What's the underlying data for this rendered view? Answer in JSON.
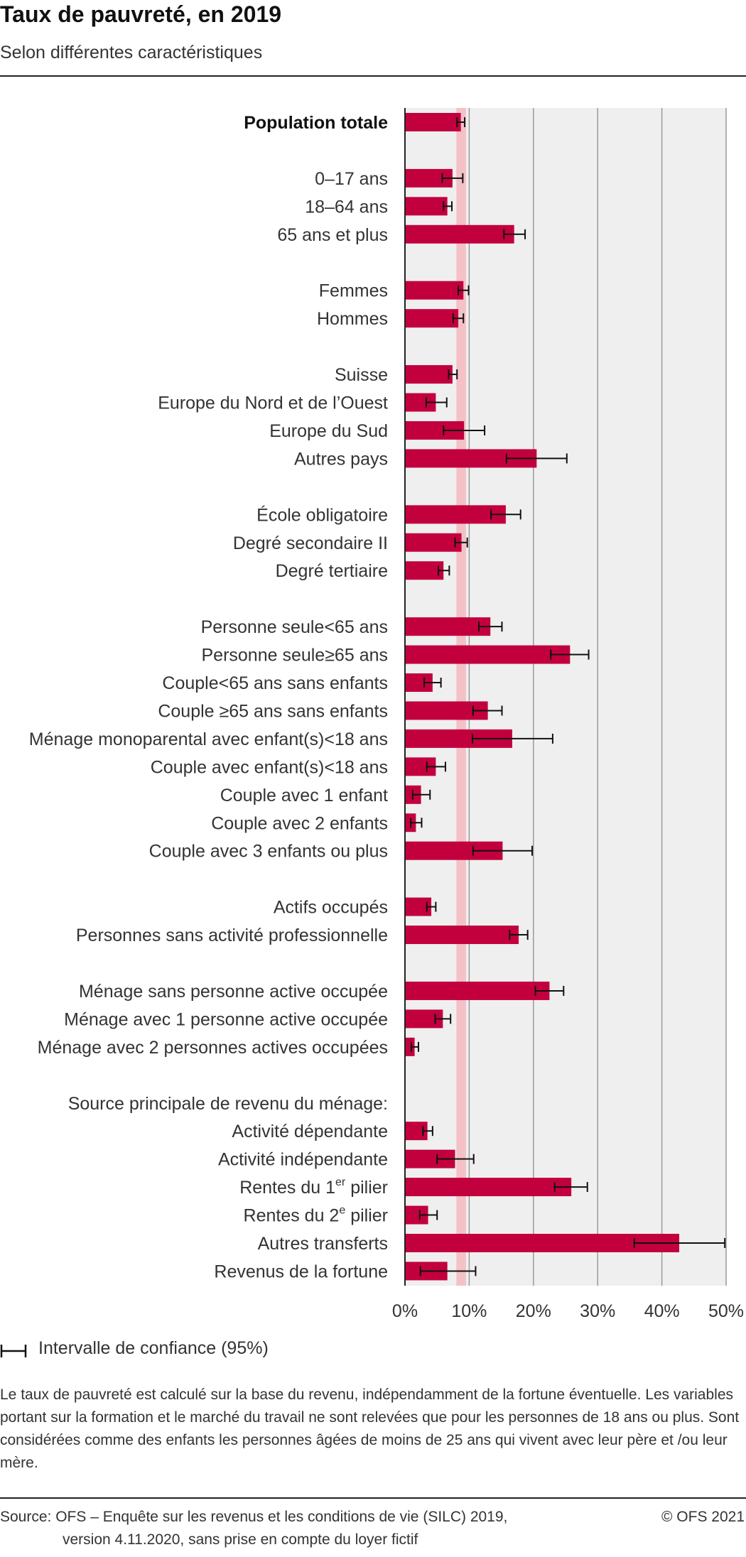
{
  "chart_data": {
    "type": "bar",
    "orientation": "horizontal",
    "title": "Taux de pauvreté, en 2019",
    "subtitle": "Selon différentes caractéristiques",
    "xlim": [
      0,
      50
    ],
    "ticks": [
      0,
      10,
      20,
      30,
      40,
      50
    ],
    "tick_labels": [
      "0%",
      "10%",
      "20%",
      "30%",
      "40%",
      "50%"
    ],
    "reference_band": [
      8,
      9.5
    ],
    "colors": {
      "bar": "#c2003e",
      "band": "#f4c1c7",
      "plot_bg": "#efefef",
      "grid": "#9a9a9a",
      "error": "#111111"
    },
    "groups": [
      {
        "items": [
          {
            "label": "Population totale",
            "bold": true,
            "value": 8.7,
            "ci": [
              8.1,
              9.3
            ]
          }
        ]
      },
      {
        "items": [
          {
            "label": "0–17 ans",
            "value": 7.4,
            "ci": [
              5.8,
              9.0
            ]
          },
          {
            "label": "18–64 ans",
            "value": 6.6,
            "ci": [
              6.0,
              7.3
            ]
          },
          {
            "label": "65 ans et plus",
            "value": 17.0,
            "ci": [
              15.4,
              18.7
            ]
          }
        ]
      },
      {
        "items": [
          {
            "label": "Femmes",
            "value": 9.1,
            "ci": [
              8.3,
              9.9
            ]
          },
          {
            "label": "Hommes",
            "value": 8.3,
            "ci": [
              7.5,
              9.1
            ]
          }
        ]
      },
      {
        "items": [
          {
            "label": "Suisse",
            "value": 7.4,
            "ci": [
              6.8,
              8.1
            ]
          },
          {
            "label": "Europe du Nord et de l’Ouest",
            "value": 4.8,
            "ci": [
              3.3,
              6.5
            ]
          },
          {
            "label": "Europe du Sud",
            "value": 9.2,
            "ci": [
              6.0,
              12.4
            ]
          },
          {
            "label": "Autres pays",
            "value": 20.5,
            "ci": [
              15.8,
              25.2
            ]
          }
        ]
      },
      {
        "items": [
          {
            "label": "École obligatoire",
            "value": 15.7,
            "ci": [
              13.4,
              18.0
            ]
          },
          {
            "label": "Degré secondaire II",
            "value": 8.8,
            "ci": [
              7.8,
              9.7
            ]
          },
          {
            "label": "Degré tertiaire",
            "value": 6.0,
            "ci": [
              5.2,
              6.9
            ]
          }
        ]
      },
      {
        "items": [
          {
            "label": "Personne seule<65 ans",
            "value": 13.3,
            "ci": [
              11.5,
              15.1
            ]
          },
          {
            "label": "Personne seule≥65 ans",
            "value": 25.7,
            "ci": [
              22.7,
              28.6
            ]
          },
          {
            "label": "Couple<65 ans sans enfants",
            "value": 4.3,
            "ci": [
              3.0,
              5.6
            ]
          },
          {
            "label": "Couple ≥65 ans sans enfants",
            "value": 12.9,
            "ci": [
              10.6,
              15.1
            ]
          },
          {
            "label": "Ménage monoparental avec enfant(s)<18 ans",
            "value": 16.7,
            "ci": [
              10.5,
              23.0
            ]
          },
          {
            "label": "Couple avec enfant(s)<18 ans",
            "value": 4.8,
            "ci": [
              3.4,
              6.3
            ]
          },
          {
            "label": "Couple avec 1 enfant",
            "value": 2.5,
            "ci": [
              1.2,
              3.9
            ]
          },
          {
            "label": "Couple avec 2 enfants",
            "value": 1.7,
            "ci": [
              0.9,
              2.6
            ]
          },
          {
            "label": "Couple avec 3 enfants ou plus",
            "value": 15.2,
            "ci": [
              10.6,
              19.8
            ]
          }
        ]
      },
      {
        "items": [
          {
            "label": "Actifs occupés",
            "value": 4.1,
            "ci": [
              3.4,
              4.8
            ]
          },
          {
            "label": "Personnes sans activité professionnelle",
            "value": 17.7,
            "ci": [
              16.3,
              19.1
            ]
          }
        ]
      },
      {
        "items": [
          {
            "label": "Ménage sans personne active occupée",
            "value": 22.5,
            "ci": [
              20.3,
              24.7
            ]
          },
          {
            "label": "Ménage avec 1 personne active occupée",
            "value": 5.9,
            "ci": [
              4.7,
              7.1
            ]
          },
          {
            "label": "Ménage avec 2 personnes actives occupées",
            "value": 1.5,
            "ci": [
              1.0,
              2.1
            ]
          }
        ]
      },
      {
        "header": "Source principale de revenu du ménage:",
        "items": [
          {
            "label": "Activité dépendante",
            "value": 3.5,
            "ci": [
              2.8,
              4.3
            ]
          },
          {
            "label": "Activité indépendante",
            "value": 7.8,
            "ci": [
              5.0,
              10.7
            ]
          },
          {
            "label": "Rentes du 1",
            "sup": "er",
            "label_after": " pilier",
            "value": 25.9,
            "ci": [
              23.3,
              28.4
            ]
          },
          {
            "label": "Rentes du 2",
            "sup": "e",
            "label_after": " pilier",
            "value": 3.6,
            "ci": [
              2.3,
              5.0
            ]
          },
          {
            "label": "Autres transferts",
            "value": 42.7,
            "ci": [
              35.7,
              49.8
            ]
          },
          {
            "label": "Revenus de la fortune",
            "value": 6.6,
            "ci": [
              2.4,
              11.0
            ]
          }
        ]
      }
    ]
  },
  "legend": {
    "ci_label": "Intervalle de confiance (95%)"
  },
  "note": "Le taux de pauvreté est calculé sur la base du revenu, indépendamment de la fortune éventuelle. Les variables portant sur la formation et le marché du travail ne sont relevées que pour les personnes de 18 ans ou plus. Sont considérées comme des enfants les personnes âgées de moins de 25 ans qui vivent avec leur père et /ou leur mère.",
  "source": {
    "line1": "Source: OFS – Enquête sur les revenus et les conditions de vie (SILC) 2019,",
    "line2": "version 4.11.2020, sans prise en compte du loyer fictif",
    "copyright": "© OFS 2021"
  }
}
